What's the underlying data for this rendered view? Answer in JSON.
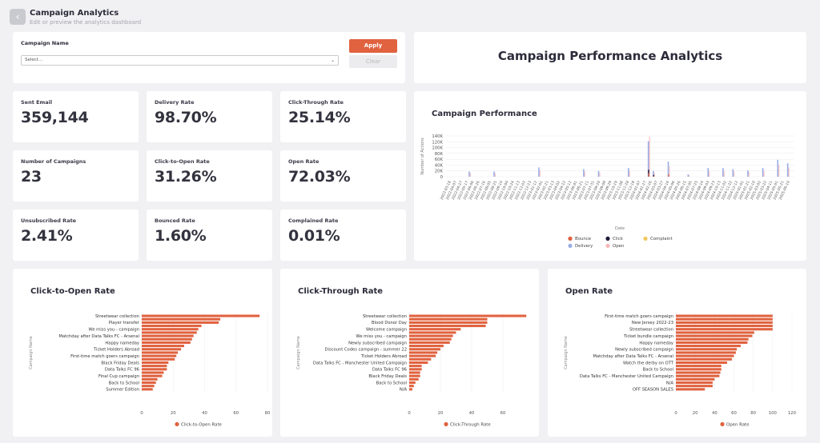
{
  "header": {
    "title": "Campaign Analytics",
    "subtitle": "Edit or preview the analytics dashboard",
    "back_icon": "chevron-left-icon"
  },
  "filter": {
    "label": "Campaign Name",
    "placeholder": "Select...",
    "apply_label": "Apply",
    "clear_label": "Clear"
  },
  "dashboard_title": "Campaign Performance Analytics",
  "kpis": [
    {
      "label": "Sent Email",
      "value": "359,144"
    },
    {
      "label": "Delivery Rate",
      "value": "98.70%"
    },
    {
      "label": "Click-Through Rate",
      "value": "25.14%"
    },
    {
      "label": "Number of Campaigns",
      "value": "23"
    },
    {
      "label": "Click-to-Open Rate",
      "value": "31.26%"
    },
    {
      "label": "Open Rate",
      "value": "72.03%"
    },
    {
      "label": "Unsubscribed Rate",
      "value": "2.41%"
    },
    {
      "label": "Bounced Rate",
      "value": "1.60%"
    },
    {
      "label": "Complained Rate",
      "value": "0.01%"
    }
  ],
  "colors": {
    "accent": "#e0623f",
    "bounce": "#e0623f",
    "click": "#1e1b3a",
    "complaint": "#f2c75c",
    "delivery": "#9aaee6",
    "open": "#f6b8b8"
  },
  "chart_data": [
    {
      "type": "bar",
      "title": "Campaign Performance",
      "xlabel": "Date",
      "ylabel": "Number of Actions",
      "ylim": [
        0,
        140000
      ],
      "yticks": [
        "0",
        "20K",
        "40K",
        "60K",
        "80K",
        "100K",
        "120K",
        "140K"
      ],
      "categories": [
        "2022-03-18",
        "2022-04-07",
        "2022-04-27",
        "2022-05-17",
        "2022-06-06",
        "2022-06-26",
        "2022-07-16",
        "2022-08-05",
        "2022-08-25",
        "2022-09-14",
        "2022-10-04",
        "2022-10-24",
        "2022-11-13",
        "2022-12-03",
        "2022-12-23",
        "2023-01-12",
        "2023-02-01",
        "2023-02-21",
        "2023-03-13",
        "2023-04-02",
        "2023-04-22",
        "2023-05-12",
        "2023-06-01",
        "2023-06-21",
        "2023-07-11",
        "2023-07-31",
        "2023-08-20",
        "2023-09-09",
        "2023-09-29",
        "2023-10-19",
        "2023-11-08",
        "2023-11-28",
        "2023-12-18",
        "2024-01-07",
        "2024-01-27",
        "2024-02-16",
        "2024-03-07",
        "2024-03-27",
        "2024-04-16",
        "2024-05-06",
        "2024-05-26",
        "2024-06-15",
        "2024-07-05",
        "2024-07-25",
        "2024-08-14",
        "2024-09-03",
        "2024-09-23",
        "2024-10-13",
        "2024-11-02",
        "2024-11-22",
        "2024-12-12",
        "2025-01-01",
        "2025-01-21",
        "2025-02-10",
        "2025-03-02",
        "2025-03-22",
        "2025-04-11",
        "2025-05-01",
        "2025-05-21",
        "2025-06-10"
      ],
      "spikes": [
        {
          "pos": 4,
          "delivery": 18000,
          "open": 14000,
          "click": 0,
          "bounce": 0
        },
        {
          "pos": 9,
          "delivery": 18000,
          "open": 12000,
          "click": 0,
          "bounce": 0
        },
        {
          "pos": 18,
          "delivery": 32000,
          "open": 22000,
          "click": 0,
          "bounce": 0
        },
        {
          "pos": 27,
          "delivery": 26000,
          "open": 18000,
          "click": 0,
          "bounce": 0
        },
        {
          "pos": 30,
          "delivery": 20000,
          "open": 14000,
          "click": 0,
          "bounce": 0
        },
        {
          "pos": 36,
          "delivery": 30000,
          "open": 20000,
          "click": 0,
          "bounce": 0
        },
        {
          "pos": 40,
          "delivery": 122000,
          "open": 138000,
          "click": 24000,
          "bounce": 12000
        },
        {
          "pos": 41,
          "delivery": 20000,
          "open": 14000,
          "click": 6000,
          "bounce": 2000
        },
        {
          "pos": 44,
          "delivery": 52000,
          "open": 36000,
          "click": 0,
          "bounce": 8000
        },
        {
          "pos": 48,
          "delivery": 8000,
          "open": 5000,
          "click": 0,
          "bounce": 0
        },
        {
          "pos": 52,
          "delivery": 30000,
          "open": 20000,
          "click": 0,
          "bounce": 0
        },
        {
          "pos": 55,
          "delivery": 30000,
          "open": 20000,
          "click": 0,
          "bounce": 0
        },
        {
          "pos": 57,
          "delivery": 26000,
          "open": 18000,
          "click": 0,
          "bounce": 0
        },
        {
          "pos": 60,
          "delivery": 22000,
          "open": 16000,
          "click": 0,
          "bounce": 0
        },
        {
          "pos": 63,
          "delivery": 30000,
          "open": 20000,
          "click": 0,
          "bounce": 0
        },
        {
          "pos": 66,
          "delivery": 58000,
          "open": 40000,
          "click": 0,
          "bounce": 0
        },
        {
          "pos": 68,
          "delivery": 46000,
          "open": 32000,
          "click": 0,
          "bounce": 0
        }
      ],
      "legend": [
        "Bounce",
        "Click",
        "Complaint",
        "Delivery",
        "Open"
      ],
      "legend_position": "bottom"
    },
    {
      "type": "bar",
      "orientation": "horizontal",
      "title": "Click-to-Open Rate",
      "ylabel": "Campaign Name",
      "legend": [
        "Click-to-Open Rate"
      ],
      "xlim": [
        0,
        80
      ],
      "xticks": [
        "0",
        "20",
        "40",
        "60",
        "80"
      ],
      "categories": [
        "Streetwear collection",
        "",
        "Player transfer",
        "",
        "We miss you - campaign",
        "",
        "Matchday after Data Talks FC - Arsenal",
        "",
        "Happy nameday",
        "",
        "Ticket Holders Abroad",
        "",
        "First-time match goers campaign",
        "",
        "Black Friday Deals",
        "",
        "Data Talks FC 96",
        "",
        "Final Cup campaign",
        "",
        "Back to School",
        "",
        "Summer Edition"
      ],
      "values": [
        75,
        50,
        49,
        38,
        36,
        35,
        33,
        32,
        31,
        27,
        25,
        23,
        22,
        21,
        17,
        16,
        16,
        14,
        13,
        10,
        9,
        8,
        7
      ]
    },
    {
      "type": "bar",
      "orientation": "horizontal",
      "title": "Click-Through Rate",
      "ylabel": "Campaign Name",
      "legend": [
        "Click-Through Rate"
      ],
      "xlim": [
        0,
        80
      ],
      "xticks": [
        "0",
        "20",
        "40",
        "60"
      ],
      "categories": [
        "Streetwear collection",
        "",
        "Blood Donor Day",
        "",
        "Welcome campaign",
        "",
        "We miss you - campaign",
        "",
        "Newly subscribed campaign",
        "",
        "Discount Codes campaign - summer 22",
        "",
        "Ticket Holders Abroad",
        "",
        "Data Talks FC - Manchester United Campaign",
        "",
        "Data Talks FC 96",
        "",
        "Black Friday Deals",
        "",
        "Back to School",
        "",
        "N/A"
      ],
      "values": [
        75,
        50,
        50,
        49,
        33,
        30,
        28,
        27,
        26,
        22,
        20,
        18,
        17,
        14,
        12,
        8,
        8,
        7,
        7,
        6,
        4,
        3,
        2
      ]
    },
    {
      "type": "bar",
      "orientation": "horizontal",
      "title": "Open Rate",
      "ylabel": "Campaign Name",
      "legend": [
        "Open Rate"
      ],
      "xlim": [
        0,
        120
      ],
      "xticks": [
        "0",
        "20",
        "40",
        "60",
        "80",
        "100",
        "120"
      ],
      "categories": [
        "First-time match goers campaign",
        "",
        "New Jersey 2022-23",
        "",
        "Streetwear collection",
        "",
        "Ticket bundle campaign",
        "",
        "Happy nameday",
        "",
        "Newly subscribed campaign",
        "",
        "Matchday after Data Talks FC - Arsenal",
        "",
        "Watch the derby on OTT",
        "",
        "Back to School",
        "",
        "Data Talks FC - Manchester United Campaign",
        "",
        "N/A",
        "",
        "OFF SEASON SALES"
      ],
      "values": [
        100,
        100,
        100,
        100,
        100,
        81,
        79,
        75,
        74,
        67,
        63,
        62,
        60,
        58,
        53,
        47,
        47,
        46,
        45,
        40,
        38,
        38,
        30
      ]
    }
  ]
}
